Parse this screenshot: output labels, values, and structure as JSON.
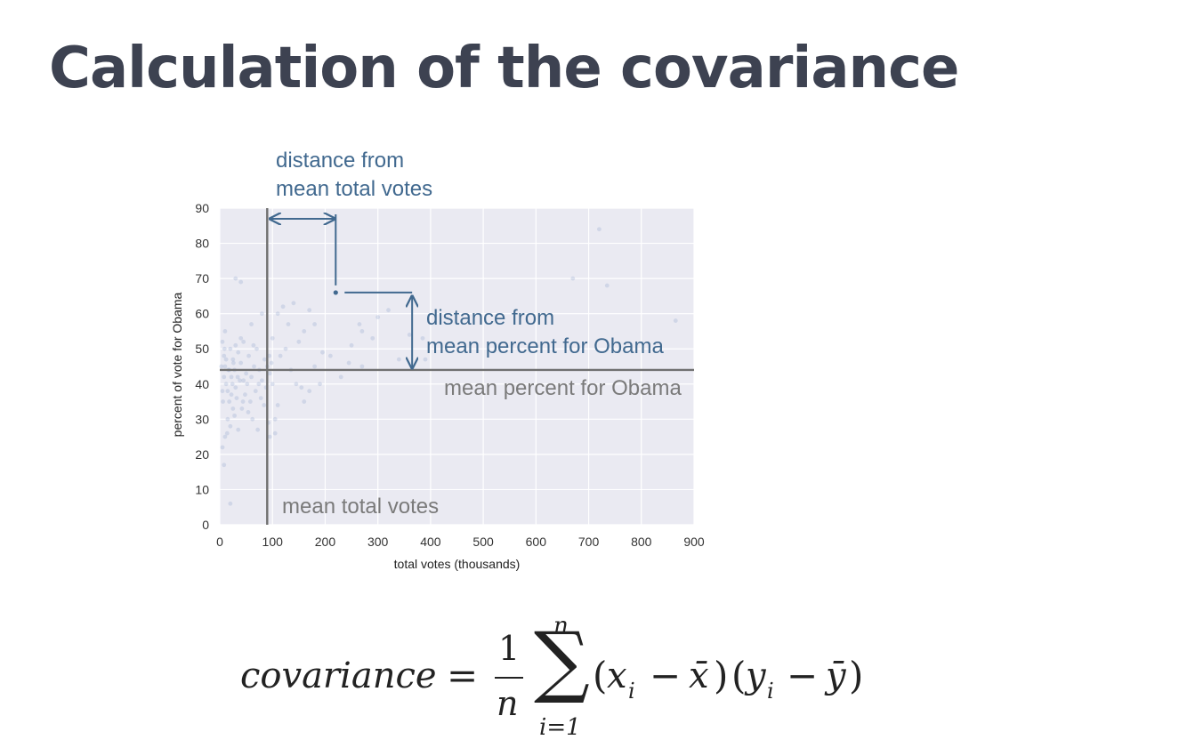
{
  "title": "Calculation of the covariance",
  "chart_data": {
    "type": "scatter",
    "xlabel": "total votes (thousands)",
    "ylabel": "percent of vote for Obama",
    "xlim": [
      0,
      900
    ],
    "ylim": [
      0,
      90
    ],
    "xticks": [
      0,
      100,
      200,
      300,
      400,
      500,
      600,
      700,
      800,
      900
    ],
    "yticks": [
      0,
      10,
      20,
      30,
      40,
      50,
      60,
      70,
      80,
      90
    ],
    "grid": true,
    "mean_x": 90,
    "mean_y": 44,
    "highlight_point": {
      "x": 220,
      "y": 66
    },
    "annotations": {
      "dist_x_line1": "distance from",
      "dist_x_line2": "mean total votes",
      "dist_y_line1": "distance from",
      "dist_y_line2": "mean percent for Obama",
      "mean_y_label": "mean percent for Obama",
      "mean_x_label": "mean total votes"
    },
    "colors": {
      "points": "#8da0cb",
      "mean_lines": "#707070",
      "annotation": "#41698f",
      "background": "#eaeaf2"
    },
    "points": [
      [
        5,
        52
      ],
      [
        8,
        48
      ],
      [
        10,
        45
      ],
      [
        12,
        40
      ],
      [
        15,
        38
      ],
      [
        18,
        35
      ],
      [
        20,
        50
      ],
      [
        22,
        42
      ],
      [
        25,
        47
      ],
      [
        28,
        44
      ],
      [
        30,
        39
      ],
      [
        32,
        36
      ],
      [
        35,
        49
      ],
      [
        38,
        41
      ],
      [
        40,
        46
      ],
      [
        42,
        33
      ],
      [
        45,
        52
      ],
      [
        48,
        37
      ],
      [
        50,
        43
      ],
      [
        52,
        40
      ],
      [
        55,
        48
      ],
      [
        58,
        35
      ],
      [
        60,
        42
      ],
      [
        62,
        30
      ],
      [
        65,
        45
      ],
      [
        68,
        38
      ],
      [
        70,
        50
      ],
      [
        72,
        27
      ],
      [
        75,
        44
      ],
      [
        78,
        36
      ],
      [
        80,
        41
      ],
      [
        85,
        47
      ],
      [
        88,
        39
      ],
      [
        92,
        29
      ],
      [
        95,
        43
      ],
      [
        98,
        46
      ],
      [
        100,
        40
      ],
      [
        10,
        55
      ],
      [
        15,
        30
      ],
      [
        20,
        28
      ],
      [
        25,
        33
      ],
      [
        5,
        38
      ],
      [
        8,
        42
      ],
      [
        12,
        47
      ],
      [
        18,
        44
      ],
      [
        22,
        37
      ],
      [
        28,
        31
      ],
      [
        35,
        27
      ],
      [
        40,
        53
      ],
      [
        45,
        41
      ],
      [
        3,
        45
      ],
      [
        6,
        35
      ],
      [
        9,
        50
      ],
      [
        14,
        26
      ],
      [
        16,
        44
      ],
      [
        24,
        40
      ],
      [
        26,
        46
      ],
      [
        34,
        42
      ],
      [
        44,
        35
      ],
      [
        54,
        32
      ],
      [
        64,
        51
      ],
      [
        74,
        40
      ],
      [
        84,
        34
      ],
      [
        94,
        48
      ],
      [
        5,
        22
      ],
      [
        8,
        17
      ],
      [
        20,
        6
      ],
      [
        10,
        25
      ],
      [
        30,
        51
      ],
      [
        60,
        57
      ],
      [
        40,
        69
      ],
      [
        30,
        70
      ],
      [
        80,
        60
      ],
      [
        90,
        45
      ],
      [
        100,
        53
      ],
      [
        110,
        60
      ],
      [
        120,
        62
      ],
      [
        130,
        57
      ],
      [
        140,
        63
      ],
      [
        150,
        52
      ],
      [
        160,
        55
      ],
      [
        170,
        61
      ],
      [
        180,
        57
      ],
      [
        115,
        48
      ],
      [
        125,
        50
      ],
      [
        135,
        44
      ],
      [
        145,
        40
      ],
      [
        155,
        39
      ],
      [
        170,
        38
      ],
      [
        180,
        45
      ],
      [
        195,
        49
      ],
      [
        210,
        48
      ],
      [
        230,
        42
      ],
      [
        250,
        51
      ],
      [
        270,
        55
      ],
      [
        290,
        53
      ],
      [
        320,
        61
      ],
      [
        360,
        54
      ],
      [
        385,
        53
      ],
      [
        245,
        46
      ],
      [
        190,
        40
      ],
      [
        160,
        35
      ],
      [
        105,
        30
      ],
      [
        110,
        34
      ],
      [
        105,
        26
      ],
      [
        95,
        25
      ],
      [
        265,
        57
      ],
      [
        300,
        59
      ],
      [
        340,
        47
      ],
      [
        390,
        47
      ],
      [
        270,
        45
      ],
      [
        670,
        70
      ],
      [
        720,
        84
      ],
      [
        735,
        68
      ],
      [
        865,
        58
      ]
    ]
  },
  "formula": {
    "lhs": "covariance",
    "eq": "=",
    "frac_num": "1",
    "frac_den": "n",
    "sum": "∑",
    "sum_upper": "n",
    "sum_lower": "i=1",
    "term1_x": "x",
    "term1_i": "i",
    "term1_xbar": "x̄",
    "term2_y": "y",
    "term2_i": "i",
    "term2_ybar": "ȳ"
  }
}
